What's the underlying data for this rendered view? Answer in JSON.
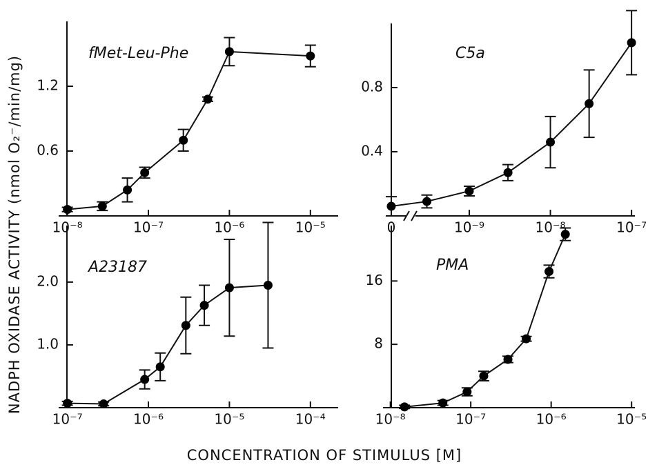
{
  "ylabel": "NADPH OXIDASE ACTIVITY (nmol O₂⁻/min/mg)",
  "xlabel": "CONCENTRATION OF STIMULUS [M]",
  "chart_data": [
    {
      "type": "line",
      "title": "fMet-Leu-Phe",
      "color": "#000000",
      "log_x": true,
      "x": [
        1e-08,
        2.7e-08,
        5.5e-08,
        9e-08,
        2.7e-07,
        5.4e-07,
        1e-06,
        1e-05
      ],
      "values": [
        0.06,
        0.09,
        0.24,
        0.4,
        0.7,
        1.08,
        1.52,
        1.48
      ],
      "errors": [
        0.02,
        0.04,
        0.11,
        0.05,
        0.1,
        0.02,
        0.13,
        0.1
      ],
      "xlim": [
        7.8e-09,
        2.2e-05
      ],
      "ylim": [
        0,
        1.8
      ],
      "xticks": [
        {
          "value": 1e-08,
          "label": "10⁻⁸"
        },
        {
          "value": 1e-07,
          "label": "10⁻⁷"
        },
        {
          "value": 1e-06,
          "label": "10⁻⁶"
        },
        {
          "value": 1e-05,
          "label": "10⁻⁵"
        }
      ],
      "yticks": [
        0.6,
        1.2
      ]
    },
    {
      "type": "line",
      "title": "C5a",
      "color": "#000000",
      "log_x": true,
      "x_axis_break": true,
      "x": [
        0,
        3e-10,
        1e-09,
        3e-09,
        1e-08,
        3e-08,
        1e-07
      ],
      "values": [
        0.06,
        0.09,
        0.155,
        0.27,
        0.46,
        0.7,
        1.08
      ],
      "errors": [
        0.06,
        0.04,
        0.03,
        0.05,
        0.16,
        0.21,
        0.2
      ],
      "xlim": [
        0,
        1.1e-07
      ],
      "ylim": [
        0,
        1.2
      ],
      "xticks": [
        0,
        {
          "value": 1e-09,
          "label": "10⁻⁹"
        },
        {
          "value": 1e-08,
          "label": "10⁻⁸"
        },
        {
          "value": 1e-07,
          "label": "10⁻⁷"
        }
      ],
      "yticks": [
        0.4,
        0.8
      ]
    },
    {
      "type": "line",
      "title": "A23187",
      "color": "#000000",
      "log_x": true,
      "x": [
        1e-07,
        2.8e-07,
        9e-07,
        1.4e-06,
        2.9e-06,
        4.9e-06,
        1e-05,
        3e-05
      ],
      "values": [
        0.07,
        0.06,
        0.45,
        0.65,
        1.31,
        1.63,
        1.91,
        1.95
      ],
      "errors": [
        0.03,
        0.03,
        0.15,
        0.22,
        0.45,
        0.32,
        0.77,
        1.0
      ],
      "xlim": [
        7.8e-08,
        0.00022
      ],
      "ylim": [
        0,
        2.9
      ],
      "xticks": [
        {
          "value": 1e-07,
          "label": "10⁻⁷"
        },
        {
          "value": 1e-06,
          "label": "10⁻⁶"
        },
        {
          "value": 1e-05,
          "label": "10⁻⁵"
        },
        {
          "value": 0.0001,
          "label": "10⁻⁴"
        }
      ],
      "yticks": [
        {
          "value": 1,
          "label": "1.0"
        },
        {
          "value": 2,
          "label": "2.0"
        }
      ]
    },
    {
      "type": "line",
      "title": "PMA",
      "color": "#000000",
      "log_x": true,
      "x": [
        1.5e-08,
        4.5e-08,
        9e-08,
        1.45e-07,
        2.9e-07,
        4.9e-07,
        9.4e-07,
        1.5e-06
      ],
      "values": [
        0.1,
        0.6,
        2.0,
        4.0,
        6.1,
        8.7,
        17.2,
        21.9
      ],
      "errors": [
        0.2,
        0.3,
        0.5,
        0.6,
        0.4,
        0.3,
        0.8,
        0.8
      ],
      "xlim": [
        8.1e-09,
        1.1e-05
      ],
      "ylim": [
        0,
        23
      ],
      "xticks": [
        {
          "value": 1e-08,
          "label": "10⁻⁸"
        },
        {
          "value": 1e-07,
          "label": "10⁻⁷"
        },
        {
          "value": 1e-06,
          "label": "10⁻⁶"
        },
        {
          "value": 1e-05,
          "label": "10⁻⁵"
        }
      ],
      "yticks": [
        8,
        16
      ]
    }
  ]
}
